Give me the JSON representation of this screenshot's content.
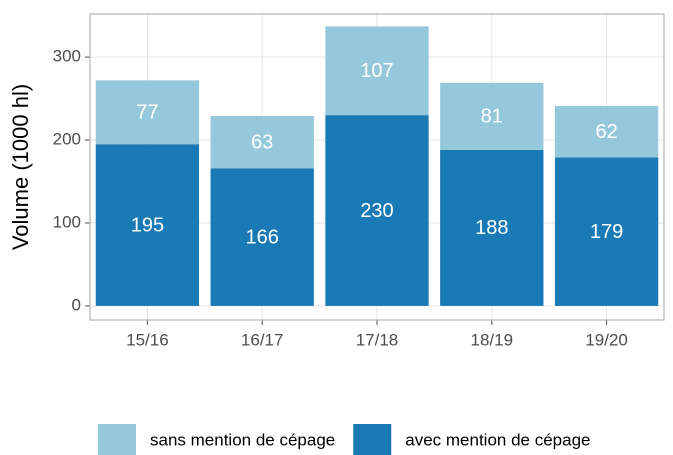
{
  "chart_data": {
    "type": "stacked_bar",
    "y_label": "Volume (1000 hl)",
    "categories": [
      "15/16",
      "16/17",
      "17/18",
      "18/19",
      "19/20"
    ],
    "series": [
      {
        "name": "sans mention de cépage",
        "color": "#96c8dc",
        "values": [
          77,
          63,
          107,
          81,
          62
        ]
      },
      {
        "name": "avec mention de cépage",
        "color": "#1a7ab5",
        "values": [
          195,
          166,
          230,
          188,
          179
        ]
      }
    ],
    "stack_order": [
      1,
      0
    ],
    "ylim": [
      -17,
      352
    ],
    "yticks": [
      0,
      100,
      200,
      300
    ],
    "grid": true,
    "legend": "bottom"
  }
}
